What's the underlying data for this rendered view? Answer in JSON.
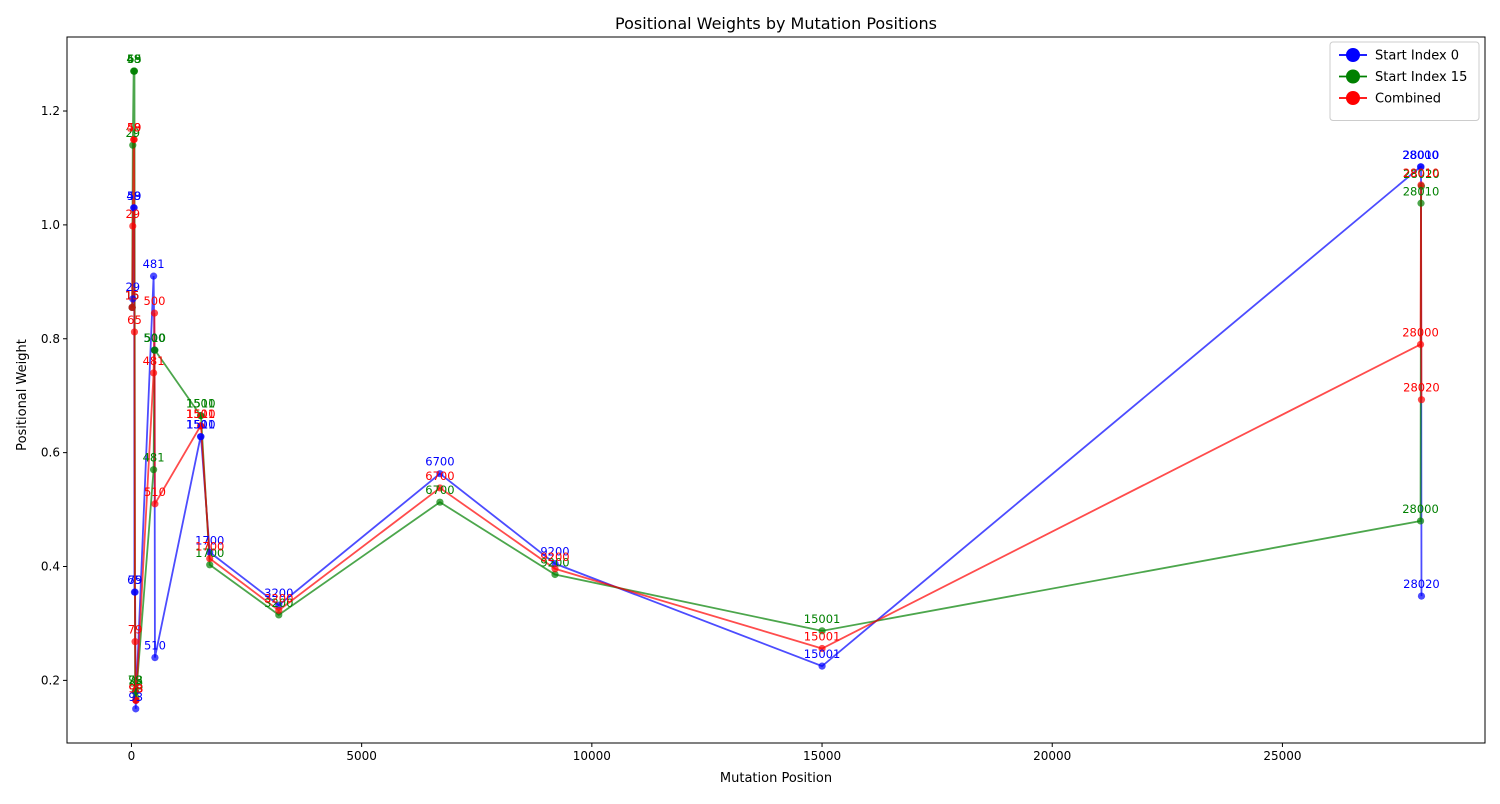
{
  "chart_data": {
    "type": "line",
    "title": "Positional Weights by Mutation Positions",
    "xlabel": "Mutation Position",
    "ylabel": "Positional Weight",
    "xlim": [
      -1400,
      29400
    ],
    "ylim": [
      0.09,
      1.33
    ],
    "xticks": [
      0,
      5000,
      10000,
      15000,
      20000,
      25000
    ],
    "xtick_labels": [
      "0",
      "5000",
      "10000",
      "15000",
      "20000",
      "25000"
    ],
    "yticks": [
      0.2,
      0.4,
      0.6,
      0.8,
      1.0,
      1.2
    ],
    "ytick_labels": [
      "0.2",
      "0.4",
      "0.6",
      "0.8",
      "1.0",
      "1.2"
    ],
    "grid": false,
    "legend_position": "top-right",
    "series": [
      {
        "name": "Start Index 0",
        "color": "#0000ff",
        "points": [
          {
            "x": 15,
            "y": 0.855,
            "label": "15"
          },
          {
            "x": 29,
            "y": 0.87,
            "label": "29"
          },
          {
            "x": 48,
            "y": 1.03,
            "label": "48"
          },
          {
            "x": 59,
            "y": 1.03,
            "label": "59"
          },
          {
            "x": 65,
            "y": 0.355,
            "label": "65"
          },
          {
            "x": 79,
            "y": 0.355,
            "label": "79"
          },
          {
            "x": 93,
            "y": 0.15,
            "label": "93"
          },
          {
            "x": 98,
            "y": 0.165,
            "label": "98"
          },
          {
            "x": 481,
            "y": 0.91,
            "label": "481"
          },
          {
            "x": 500,
            "y": 0.78,
            "label": "500"
          },
          {
            "x": 510,
            "y": 0.24,
            "label": "510"
          },
          {
            "x": 1501,
            "y": 0.628,
            "label": "1501"
          },
          {
            "x": 1510,
            "y": 0.628,
            "label": "1510"
          },
          {
            "x": 1700,
            "y": 0.425,
            "label": "1700"
          },
          {
            "x": 3200,
            "y": 0.332,
            "label": "3200"
          },
          {
            "x": 6700,
            "y": 0.563,
            "label": "6700"
          },
          {
            "x": 9200,
            "y": 0.405,
            "label": "9200"
          },
          {
            "x": 15001,
            "y": 0.225,
            "label": "15001"
          },
          {
            "x": 28000,
            "y": 1.102,
            "label": "28000"
          },
          {
            "x": 28010,
            "y": 1.102,
            "label": "28010"
          },
          {
            "x": 28020,
            "y": 0.348,
            "label": "28020"
          }
        ]
      },
      {
        "name": "Start Index 15",
        "color": "#008000",
        "points": [
          {
            "x": 15,
            "y": 0.855,
            "label": "15"
          },
          {
            "x": 29,
            "y": 1.14,
            "label": "29"
          },
          {
            "x": 48,
            "y": 1.27,
            "label": "48"
          },
          {
            "x": 59,
            "y": 1.27,
            "label": "59"
          },
          {
            "x": 65,
            "y": 1.27,
            "label": "65"
          },
          {
            "x": 79,
            "y": 0.18,
            "label": "79"
          },
          {
            "x": 93,
            "y": 0.18,
            "label": "93"
          },
          {
            "x": 98,
            "y": 0.17,
            "label": "98"
          },
          {
            "x": 481,
            "y": 0.57,
            "label": "481"
          },
          {
            "x": 500,
            "y": 0.78,
            "label": "500"
          },
          {
            "x": 510,
            "y": 0.78,
            "label": "510"
          },
          {
            "x": 1501,
            "y": 0.665,
            "label": "1501"
          },
          {
            "x": 1510,
            "y": 0.665,
            "label": "1510"
          },
          {
            "x": 1700,
            "y": 0.403,
            "label": "1700"
          },
          {
            "x": 3200,
            "y": 0.315,
            "label": "3200"
          },
          {
            "x": 6700,
            "y": 0.513,
            "label": "6700"
          },
          {
            "x": 9200,
            "y": 0.386,
            "label": "9200"
          },
          {
            "x": 15001,
            "y": 0.287,
            "label": "15001"
          },
          {
            "x": 28000,
            "y": 0.48,
            "label": "28000"
          },
          {
            "x": 28010,
            "y": 1.038,
            "label": "28010"
          },
          {
            "x": 28020,
            "y": 1.068,
            "label": "28020"
          }
        ]
      },
      {
        "name": "Combined",
        "color": "#ff0000",
        "points": [
          {
            "x": 15,
            "y": 0.855,
            "label": "15"
          },
          {
            "x": 29,
            "y": 0.998,
            "label": "29"
          },
          {
            "x": 48,
            "y": 1.15,
            "label": "48"
          },
          {
            "x": 59,
            "y": 1.15,
            "label": "59"
          },
          {
            "x": 65,
            "y": 0.812,
            "label": "65"
          },
          {
            "x": 79,
            "y": 0.268,
            "label": "79"
          },
          {
            "x": 93,
            "y": 0.165,
            "label": "93"
          },
          {
            "x": 98,
            "y": 0.165,
            "label": "98"
          },
          {
            "x": 481,
            "y": 0.74,
            "label": "481"
          },
          {
            "x": 500,
            "y": 0.845,
            "label": "500"
          },
          {
            "x": 510,
            "y": 0.51,
            "label": "510"
          },
          {
            "x": 1501,
            "y": 0.647,
            "label": "1501"
          },
          {
            "x": 1510,
            "y": 0.647,
            "label": "1510"
          },
          {
            "x": 1700,
            "y": 0.414,
            "label": "1700"
          },
          {
            "x": 3200,
            "y": 0.323,
            "label": "3200"
          },
          {
            "x": 6700,
            "y": 0.538,
            "label": "6700"
          },
          {
            "x": 9200,
            "y": 0.396,
            "label": "9200"
          },
          {
            "x": 15001,
            "y": 0.256,
            "label": "15001"
          },
          {
            "x": 28000,
            "y": 0.79,
            "label": "28000"
          },
          {
            "x": 28010,
            "y": 1.07,
            "label": "28010"
          },
          {
            "x": 28020,
            "y": 0.693,
            "label": "28020"
          }
        ]
      }
    ]
  }
}
